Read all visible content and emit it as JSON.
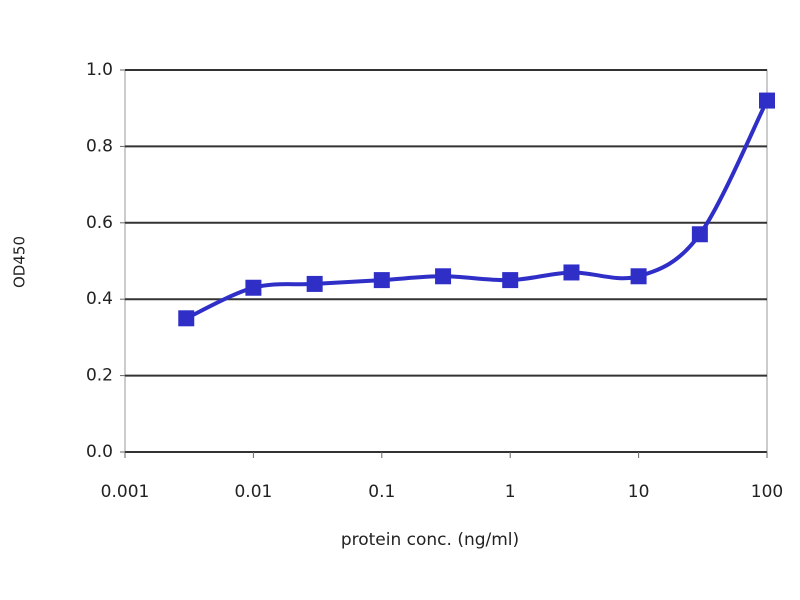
{
  "chart_data": {
    "type": "line",
    "x_label": "protein conc. (ng/ml)",
    "y_label": "OD450",
    "x": [
      0.003,
      0.01,
      0.03,
      0.1,
      0.3,
      1,
      3,
      10,
      30,
      100
    ],
    "values": [
      0.35,
      0.43,
      0.44,
      0.45,
      0.46,
      0.45,
      0.47,
      0.46,
      0.57,
      0.92
    ],
    "color": "#2f2fc8",
    "x_log": true,
    "xlim": [
      0.001,
      100
    ],
    "xticks": [
      0.001,
      0.01,
      0.1,
      1,
      10,
      100
    ],
    "ylim": [
      0,
      1
    ],
    "yticks": [
      {
        "value": 0,
        "label": "0.0"
      },
      0.2,
      0.4,
      0.6,
      0.8,
      {
        "value": 1,
        "label": "1.0"
      }
    ],
    "grid": true
  }
}
